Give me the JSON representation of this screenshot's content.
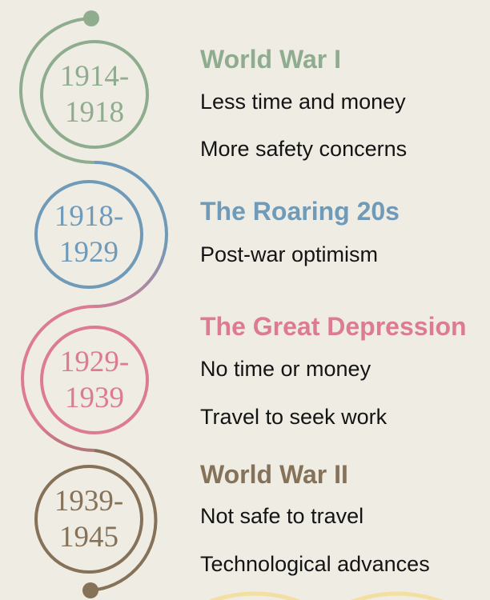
{
  "colors": {
    "background": "#efece4",
    "text": "#141414",
    "bottom_arc": "#f3dfa0"
  },
  "eras": [
    {
      "years_start": "1914-",
      "years_end": "1918",
      "title": "World War I",
      "color": "#8fad8e",
      "points": [
        "Less time and money",
        "More safety concerns"
      ]
    },
    {
      "years_start": "1918-",
      "years_end": "1929",
      "title": "The Roaring 20s",
      "color": "#6f9ab8",
      "points": [
        "Post-war optimism"
      ]
    },
    {
      "years_start": "1929-",
      "years_end": "1939",
      "title": "The Great Depression",
      "color": "#dc7b92",
      "points": [
        "No time or money",
        "Travel to seek work"
      ]
    },
    {
      "years_start": "1939-",
      "years_end": "1945",
      "title": "World War II",
      "color": "#857258",
      "points": [
        "Not safe to travel",
        "Technological advances"
      ]
    }
  ]
}
